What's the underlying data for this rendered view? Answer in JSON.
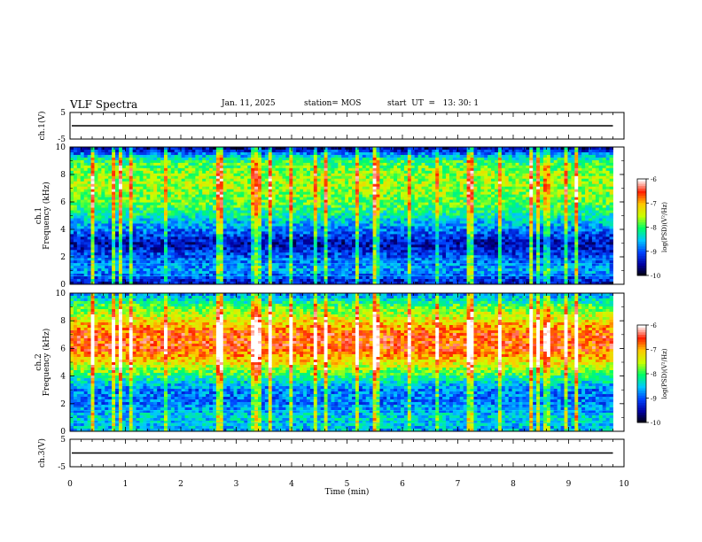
{
  "header": {
    "title": "VLF Spectra",
    "date": "Jan. 11, 2025",
    "station": "station= MOS",
    "start_ut": "start  UT  =   13: 30: 1"
  },
  "chart_data": [
    {
      "type": "line",
      "panel": "ch1-waveform",
      "ylabel": "ch.1(V)",
      "ylim": [
        -5,
        5
      ],
      "yticks": [
        "5",
        "-5"
      ],
      "xlim": [
        0,
        10
      ],
      "trace_level": 0
    },
    {
      "type": "heatmap",
      "panel": "ch1-spectrogram",
      "ylabel": "ch.1\nFrequency (kHz)",
      "ylim": [
        0,
        10
      ],
      "yticks": [
        "0",
        "2",
        "4",
        "6",
        "8",
        "10"
      ],
      "xlim": [
        0,
        9.8
      ],
      "colorbar": {
        "label": "log(PSD)(V²/Hz)",
        "range": [
          -10,
          -6
        ],
        "ticks": [
          "-6",
          "-7",
          "-8",
          "-9",
          "-10"
        ]
      },
      "band_strength": [
        0.15,
        0.35,
        0.25,
        0.15,
        0.3,
        0.45,
        0.55,
        0.6,
        0.6,
        0.5,
        0.1
      ]
    },
    {
      "type": "heatmap",
      "panel": "ch2-spectrogram",
      "ylabel": "ch.2\nFrequency (kHz)",
      "ylim": [
        0,
        10
      ],
      "yticks": [
        "0",
        "2",
        "4",
        "6",
        "8",
        "10"
      ],
      "xlim": [
        0,
        9.8
      ],
      "colorbar": {
        "label": "log(PSD)(V²/Hz)",
        "range": [
          -10,
          -6
        ],
        "ticks": [
          "-6",
          "-7",
          "-8",
          "-9",
          "-10"
        ]
      },
      "band_strength": [
        0.35,
        0.4,
        0.3,
        0.3,
        0.5,
        0.7,
        0.85,
        0.85,
        0.7,
        0.55,
        0.3
      ]
    },
    {
      "type": "line",
      "panel": "ch3-waveform",
      "ylabel": "ch.3(V)",
      "ylim": [
        -5,
        5
      ],
      "yticks": [
        "5",
        "-5"
      ],
      "xlim": [
        0,
        10
      ],
      "trace_level": 0
    }
  ],
  "xaxis": {
    "label": "Time (min)",
    "ticks": [
      "0",
      "1",
      "2",
      "3",
      "4",
      "5",
      "6",
      "7",
      "8",
      "9",
      "10"
    ],
    "range": [
      0,
      10
    ]
  },
  "colors": {
    "background": "#ffffff",
    "axis": "#000000",
    "colormap": [
      "#000000",
      "#0000a0",
      "#0044ff",
      "#00c8ff",
      "#00ff66",
      "#c8ff00",
      "#ffc800",
      "#ff2000",
      "#ffffff"
    ]
  }
}
